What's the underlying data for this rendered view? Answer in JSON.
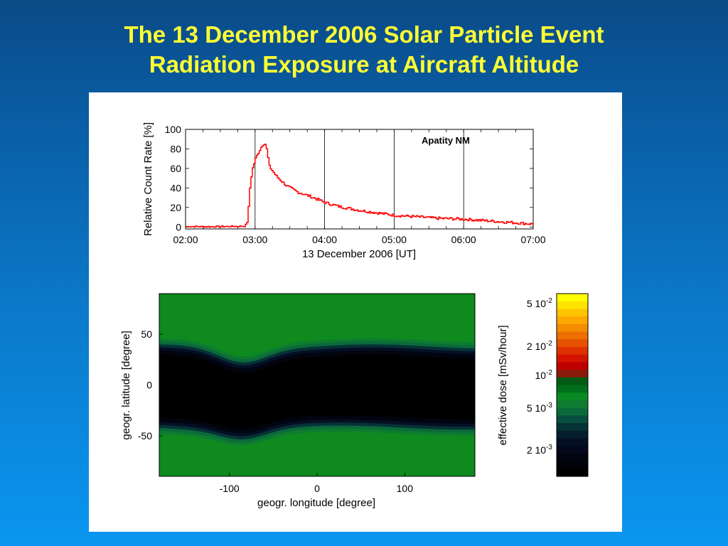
{
  "slide": {
    "title_line1": "The 13 December 2006 Solar Particle Event",
    "title_line2": "Radiation Exposure at Aircraft Altitude"
  },
  "colors": {
    "title": "#ffff33",
    "count_rate_line": "#ff0000",
    "map_green": "#0e8a1e",
    "map_dark": "#02040e"
  },
  "chart_data": [
    {
      "type": "line",
      "title": "",
      "annotation": "Apatity NM",
      "xlabel": "13 December 2006 [UT]",
      "ylabel": "Relative Count Rate [%]",
      "x_ticks": [
        "02:00",
        "03:00",
        "04:00",
        "05:00",
        "06:00",
        "07:00"
      ],
      "y_ticks": [
        "100",
        "80",
        "60",
        "40",
        "20",
        "0"
      ],
      "xlim": [
        2.0,
        7.0
      ],
      "ylim": [
        -2,
        100
      ],
      "grid": "vertical lines at each hour",
      "series": [
        {
          "x": [
            2.0,
            2.3,
            2.6,
            2.85,
            2.88,
            2.9,
            2.92,
            2.95,
            3.0,
            3.05,
            3.1,
            3.13,
            3.15,
            3.2,
            3.3,
            3.45,
            3.6,
            3.8,
            4.0,
            4.2,
            4.5,
            4.8,
            5.0,
            5.3,
            5.6,
            6.0,
            6.3,
            6.6,
            6.9,
            7.0
          ],
          "y": [
            0.5,
            0.3,
            0.5,
            0.8,
            5,
            20,
            40,
            58,
            70,
            78,
            84,
            86,
            84,
            62,
            52,
            42,
            36,
            31,
            25,
            21,
            17,
            14,
            12,
            10.5,
            9,
            8,
            6.5,
            5,
            3.5,
            3
          ]
        }
      ]
    },
    {
      "type": "heatmap",
      "title": "",
      "xlabel": "geogr. longitude [degree]",
      "ylabel": "geogr. latitude [degree]",
      "x_ticks": [
        "-100",
        "0",
        "100"
      ],
      "y_ticks": [
        "50",
        "0",
        "-50"
      ],
      "xlim": [
        -180,
        180
      ],
      "ylim": [
        -90,
        90
      ],
      "colorbar": {
        "label": "effective dose [mSv/hour]",
        "ticks": [
          {
            "base": "5 10",
            "exp": "-2",
            "value": 0.05
          },
          {
            "base": "2 10",
            "exp": "-2",
            "value": 0.02
          },
          {
            "base": "10",
            "exp": "-2",
            "value": 0.01
          },
          {
            "base": "5 10",
            "exp": "-3",
            "value": 0.005
          },
          {
            "base": "2 10",
            "exp": "-3",
            "value": 0.002
          }
        ],
        "colors": [
          "#ffff00",
          "#ffe400",
          "#ffc400",
          "#fca800",
          "#f58c00",
          "#ee6e00",
          "#e65200",
          "#de3200",
          "#d41400",
          "#bf0000",
          "#8a1a0a",
          "#005a14",
          "#006e1a",
          "#0a8a22",
          "#0e7c30",
          "#0b6a3a",
          "#084e3e",
          "#063236",
          "#051e2e",
          "#040f24",
          "#03081a",
          "#020510",
          "#010308",
          "#000000"
        ]
      },
      "contour_levels": [
        {
          "lat_base_north": 28,
          "lat_base_south": -32,
          "color": "#000000"
        },
        {
          "lat_base_north": 32,
          "lat_base_south": -36,
          "color": "#020510"
        },
        {
          "lat_base_north": 35,
          "lat_base_south": -39,
          "color": "#040f24"
        },
        {
          "lat_base_north": 38,
          "lat_base_south": -42,
          "color": "#063236"
        },
        {
          "lat_base_north": 41,
          "lat_base_south": -45,
          "color": "#0b6a3a"
        },
        {
          "lat_base_north": 44,
          "lat_base_south": -48,
          "color": "#0e7c30"
        }
      ],
      "dip": {
        "longitude": -85,
        "width_deg": 38,
        "north_shift_deg": -14,
        "south_shift_deg": -10
      }
    }
  ]
}
